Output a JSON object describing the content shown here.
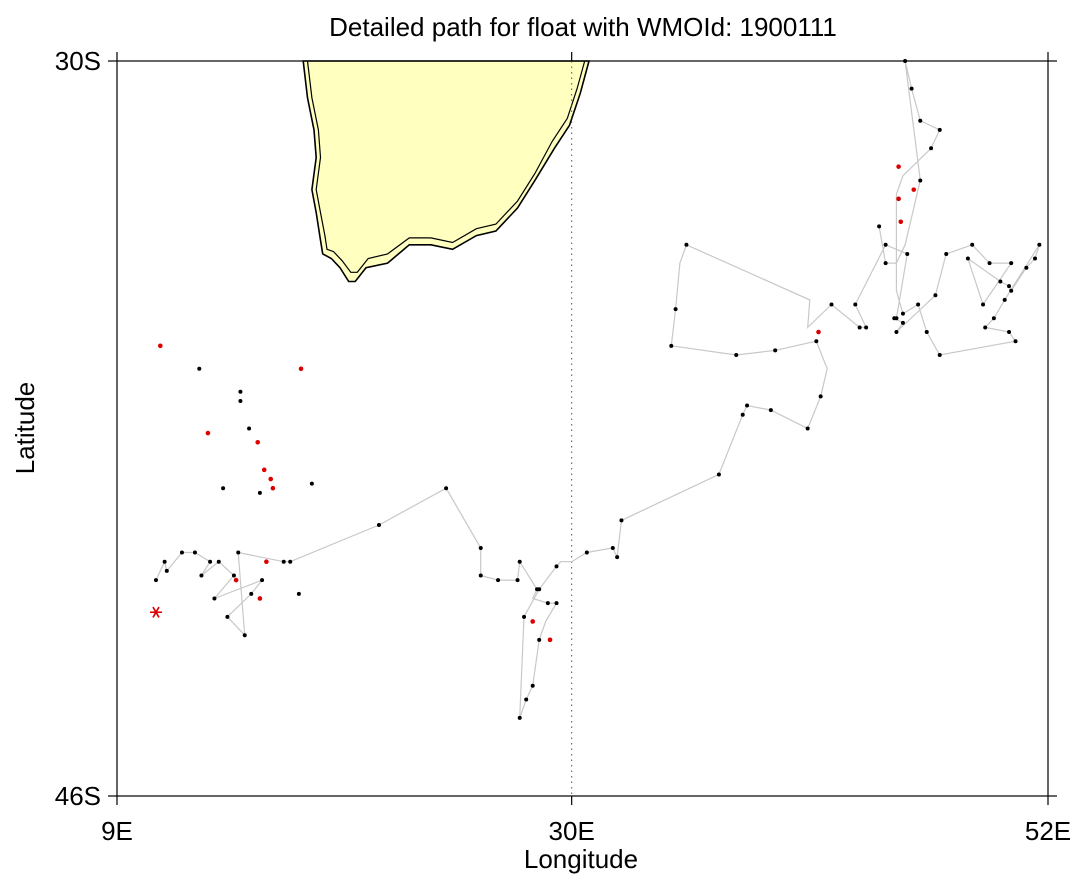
{
  "title": "Detailed path for float with WMOId: 1900111",
  "xaxis": {
    "label": "Longitude",
    "ticks": [
      {
        "value": 9,
        "label": "9E"
      },
      {
        "value": 30,
        "label": "30E"
      },
      {
        "value": 52,
        "label": "52E"
      }
    ],
    "range": [
      9,
      52
    ]
  },
  "yaxis": {
    "label": "Latitude",
    "ticks": [
      {
        "value": -30,
        "label": "30S"
      },
      {
        "value": -46,
        "label": "46S"
      }
    ],
    "range": [
      -46,
      -30
    ]
  },
  "colors": {
    "land": "#ffffc0",
    "coast": "#000000",
    "track": "#c8c8c8",
    "profile": "#000000",
    "highlight": "#dd0000",
    "start_marker": "#dd0000"
  },
  "chart_data": {
    "type": "scatter",
    "title": "Detailed path for float with WMOId: 1900111",
    "xlabel": "Longitude",
    "ylabel": "Latitude",
    "xlim": [
      9,
      52
    ],
    "ylim": [
      -46,
      -30
    ],
    "meridian_line": 30,
    "land_outline": [
      [
        17.6,
        -30
      ],
      [
        17.8,
        -30.8
      ],
      [
        18.1,
        -31.5
      ],
      [
        18.2,
        -32.1
      ],
      [
        18.0,
        -32.8
      ],
      [
        18.2,
        -33.3
      ],
      [
        18.4,
        -33.9
      ],
      [
        18.5,
        -34.2
      ],
      [
        18.9,
        -34.3
      ],
      [
        19.3,
        -34.5
      ],
      [
        19.7,
        -34.8
      ],
      [
        20.0,
        -34.8
      ],
      [
        20.5,
        -34.5
      ],
      [
        21.5,
        -34.4
      ],
      [
        22.5,
        -34.0
      ],
      [
        23.5,
        -34.0
      ],
      [
        24.5,
        -34.1
      ],
      [
        25.6,
        -33.8
      ],
      [
        26.5,
        -33.7
      ],
      [
        27.5,
        -33.2
      ],
      [
        28.3,
        -32.6
      ],
      [
        29.2,
        -31.9
      ],
      [
        29.9,
        -31.4
      ],
      [
        30.4,
        -30.7
      ],
      [
        30.8,
        -30.0
      ]
    ],
    "land_outline_inner": [
      [
        17.8,
        -30
      ],
      [
        18.0,
        -30.8
      ],
      [
        18.3,
        -31.5
      ],
      [
        18.4,
        -32.1
      ],
      [
        18.2,
        -32.8
      ],
      [
        18.4,
        -33.3
      ],
      [
        18.6,
        -33.8
      ],
      [
        18.7,
        -34.1
      ],
      [
        19.0,
        -34.15
      ],
      [
        19.4,
        -34.35
      ],
      [
        19.8,
        -34.6
      ],
      [
        20.1,
        -34.6
      ],
      [
        20.6,
        -34.3
      ],
      [
        21.5,
        -34.2
      ],
      [
        22.5,
        -33.85
      ],
      [
        23.5,
        -33.85
      ],
      [
        24.5,
        -33.95
      ],
      [
        25.6,
        -33.65
      ],
      [
        26.5,
        -33.55
      ],
      [
        27.5,
        -33.05
      ],
      [
        28.3,
        -32.45
      ],
      [
        29.1,
        -31.75
      ],
      [
        29.8,
        -31.25
      ],
      [
        30.25,
        -30.6
      ],
      [
        30.6,
        -30.0
      ]
    ],
    "track": [
      [
        10.8,
        -41.3
      ],
      [
        11.2,
        -40.9
      ],
      [
        11.3,
        -41.1
      ],
      [
        12.0,
        -40.7
      ],
      [
        12.6,
        -40.7
      ],
      [
        13.3,
        -40.9
      ],
      [
        12.9,
        -41.2
      ],
      [
        13.7,
        -40.9
      ],
      [
        14.4,
        -41.2
      ],
      [
        13.5,
        -41.7
      ],
      [
        15.7,
        -41.3
      ],
      [
        15.2,
        -41.6
      ],
      [
        14.1,
        -42.1
      ],
      [
        14.9,
        -42.5
      ],
      [
        14.6,
        -40.7
      ],
      [
        16.7,
        -40.9
      ],
      [
        17.0,
        -40.9
      ],
      [
        21.1,
        -40.1
      ],
      [
        24.2,
        -39.3
      ],
      [
        25.8,
        -40.6
      ],
      [
        25.8,
        -41.2
      ],
      [
        26.6,
        -41.3
      ],
      [
        27.5,
        -41.3
      ],
      [
        27.6,
        -40.9
      ],
      [
        28.4,
        -41.5
      ],
      [
        28.2,
        -41.7
      ],
      [
        28.9,
        -41.8
      ],
      [
        29.3,
        -41.8
      ],
      [
        28.8,
        -42.2
      ],
      [
        28.5,
        -42.6
      ],
      [
        28.2,
        -43.6
      ],
      [
        27.9,
        -43.9
      ],
      [
        27.6,
        -44.3
      ],
      [
        27.8,
        -42.1
      ],
      [
        28.5,
        -41.5
      ],
      [
        29.3,
        -41.0
      ],
      [
        29.5,
        -40.9
      ],
      [
        30.0,
        -40.9
      ],
      [
        30.7,
        -40.7
      ],
      [
        31.9,
        -40.6
      ],
      [
        32.1,
        -40.8
      ],
      [
        32.3,
        -40.0
      ],
      [
        36.8,
        -39.0
      ],
      [
        37.9,
        -37.7
      ],
      [
        38.1,
        -37.5
      ],
      [
        39.2,
        -37.6
      ],
      [
        40.9,
        -38.0
      ],
      [
        41.5,
        -37.3
      ],
      [
        41.8,
        -36.7
      ],
      [
        41.3,
        -36.1
      ],
      [
        39.4,
        -36.3
      ],
      [
        37.6,
        -36.4
      ],
      [
        34.6,
        -36.2
      ],
      [
        34.8,
        -35.4
      ],
      [
        35.0,
        -34.4
      ],
      [
        35.3,
        -34.0
      ],
      [
        41.0,
        -35.2
      ],
      [
        40.9,
        -35.8
      ],
      [
        42.0,
        -35.3
      ],
      [
        43.3,
        -35.8
      ],
      [
        43.6,
        -35.8
      ],
      [
        43.1,
        -35.3
      ],
      [
        44.5,
        -34.0
      ],
      [
        45.5,
        -34.2
      ],
      [
        45.0,
        -35.6
      ],
      [
        44.9,
        -35.6
      ],
      [
        45.3,
        -35.7
      ],
      [
        45.0,
        -35.9
      ],
      [
        46.8,
        -35.1
      ],
      [
        47.3,
        -34.2
      ],
      [
        48.5,
        -34.0
      ],
      [
        49.3,
        -34.4
      ],
      [
        50.3,
        -34.4
      ],
      [
        49.0,
        -35.3
      ],
      [
        48.3,
        -34.3
      ],
      [
        49.8,
        -34.8
      ],
      [
        50.2,
        -34.9
      ],
      [
        50.3,
        -35.0
      ],
      [
        51.0,
        -34.5
      ],
      [
        51.4,
        -34.3
      ],
      [
        51.6,
        -34.0
      ],
      [
        50.0,
        -35.2
      ],
      [
        49.5,
        -35.6
      ],
      [
        49.1,
        -35.8
      ],
      [
        50.2,
        -35.9
      ],
      [
        50.5,
        -36.1
      ],
      [
        47.0,
        -36.4
      ],
      [
        46.4,
        -35.9
      ],
      [
        46.0,
        -35.3
      ],
      [
        45.3,
        -35.5
      ],
      [
        45.0,
        -35.0
      ],
      [
        45.0,
        -33.8
      ],
      [
        45.0,
        -32.9
      ],
      [
        45.3,
        -32.5
      ],
      [
        46.6,
        -31.9
      ],
      [
        47.0,
        -31.5
      ],
      [
        46.1,
        -31.3
      ],
      [
        45.7,
        -30.6
      ],
      [
        45.4,
        -30.0
      ],
      [
        46.1,
        -32.6
      ],
      [
        45.4,
        -34.0
      ],
      [
        45.0,
        -34.4
      ],
      [
        44.5,
        -34.4
      ],
      [
        44.2,
        -33.6
      ]
    ],
    "profiles": [
      [
        10.8,
        -41.3
      ],
      [
        11.2,
        -40.9
      ],
      [
        11.3,
        -41.1
      ],
      [
        12.0,
        -40.7
      ],
      [
        12.6,
        -40.7
      ],
      [
        13.3,
        -40.9
      ],
      [
        12.9,
        -41.2
      ],
      [
        13.7,
        -40.9
      ],
      [
        14.4,
        -41.2
      ],
      [
        13.5,
        -41.7
      ],
      [
        15.7,
        -41.3
      ],
      [
        15.2,
        -41.6
      ],
      [
        14.1,
        -42.1
      ],
      [
        14.9,
        -42.5
      ],
      [
        14.6,
        -40.7
      ],
      [
        16.7,
        -40.9
      ],
      [
        17.0,
        -40.9
      ],
      [
        21.1,
        -40.1
      ],
      [
        24.2,
        -39.3
      ],
      [
        25.8,
        -40.6
      ],
      [
        25.8,
        -41.2
      ],
      [
        26.6,
        -41.3
      ],
      [
        27.5,
        -41.3
      ],
      [
        27.6,
        -40.9
      ],
      [
        28.4,
        -41.5
      ],
      [
        28.9,
        -41.8
      ],
      [
        29.3,
        -41.8
      ],
      [
        28.5,
        -42.6
      ],
      [
        28.2,
        -43.6
      ],
      [
        27.9,
        -43.9
      ],
      [
        27.6,
        -44.3
      ],
      [
        27.8,
        -42.1
      ],
      [
        28.5,
        -41.5
      ],
      [
        29.3,
        -41.0
      ],
      [
        30.7,
        -40.7
      ],
      [
        31.9,
        -40.6
      ],
      [
        32.1,
        -40.8
      ],
      [
        32.3,
        -40.0
      ],
      [
        36.8,
        -39.0
      ],
      [
        37.9,
        -37.7
      ],
      [
        38.1,
        -37.5
      ],
      [
        39.2,
        -37.6
      ],
      [
        40.9,
        -38.0
      ],
      [
        41.5,
        -37.3
      ],
      [
        41.3,
        -36.1
      ],
      [
        39.4,
        -36.3
      ],
      [
        37.6,
        -36.4
      ],
      [
        34.6,
        -36.2
      ],
      [
        34.8,
        -35.4
      ],
      [
        35.3,
        -34.0
      ],
      [
        42.0,
        -35.3
      ],
      [
        43.3,
        -35.8
      ],
      [
        43.6,
        -35.8
      ],
      [
        43.1,
        -35.3
      ],
      [
        44.5,
        -34.0
      ],
      [
        45.5,
        -34.2
      ],
      [
        45.0,
        -35.6
      ],
      [
        44.9,
        -35.6
      ],
      [
        45.3,
        -35.7
      ],
      [
        45.0,
        -35.9
      ],
      [
        46.8,
        -35.1
      ],
      [
        47.3,
        -34.2
      ],
      [
        48.5,
        -34.0
      ],
      [
        49.3,
        -34.4
      ],
      [
        50.3,
        -34.4
      ],
      [
        49.0,
        -35.3
      ],
      [
        48.3,
        -34.3
      ],
      [
        49.8,
        -34.8
      ],
      [
        50.2,
        -34.9
      ],
      [
        50.3,
        -35.0
      ],
      [
        51.0,
        -34.5
      ],
      [
        51.4,
        -34.3
      ],
      [
        51.6,
        -34.0
      ],
      [
        50.0,
        -35.2
      ],
      [
        49.5,
        -35.6
      ],
      [
        49.1,
        -35.8
      ],
      [
        50.2,
        -35.9
      ],
      [
        50.5,
        -36.1
      ],
      [
        47.0,
        -36.4
      ],
      [
        46.4,
        -35.9
      ],
      [
        46.0,
        -35.3
      ],
      [
        45.3,
        -35.5
      ],
      [
        46.6,
        -31.9
      ],
      [
        47.0,
        -31.5
      ],
      [
        46.1,
        -31.3
      ],
      [
        45.7,
        -30.6
      ],
      [
        45.4,
        -30.0
      ],
      [
        46.1,
        -32.6
      ],
      [
        44.5,
        -34.4
      ],
      [
        44.2,
        -33.6
      ],
      [
        12.8,
        -36.7
      ],
      [
        15.1,
        -38.0
      ],
      [
        15.6,
        -39.4
      ],
      [
        17.4,
        -41.6
      ],
      [
        18.0,
        -39.2
      ],
      [
        14.7,
        -37.2
      ],
      [
        14.7,
        -37.4
      ],
      [
        13.9,
        -39.3
      ]
    ],
    "highlighted_profiles": [
      [
        11.0,
        -36.2
      ],
      [
        13.2,
        -38.1
      ],
      [
        15.5,
        -38.3
      ],
      [
        15.8,
        -38.9
      ],
      [
        16.1,
        -39.1
      ],
      [
        16.2,
        -39.3
      ],
      [
        17.5,
        -36.7
      ],
      [
        15.9,
        -40.9
      ],
      [
        14.5,
        -41.3
      ],
      [
        15.6,
        -41.7
      ],
      [
        28.2,
        -42.2
      ],
      [
        29.0,
        -42.6
      ],
      [
        41.4,
        -35.9
      ],
      [
        45.1,
        -32.3
      ],
      [
        45.1,
        -33.0
      ],
      [
        45.2,
        -33.5
      ],
      [
        45.8,
        -32.8
      ]
    ],
    "start_marker": [
      10.8,
      -42.0
    ]
  }
}
